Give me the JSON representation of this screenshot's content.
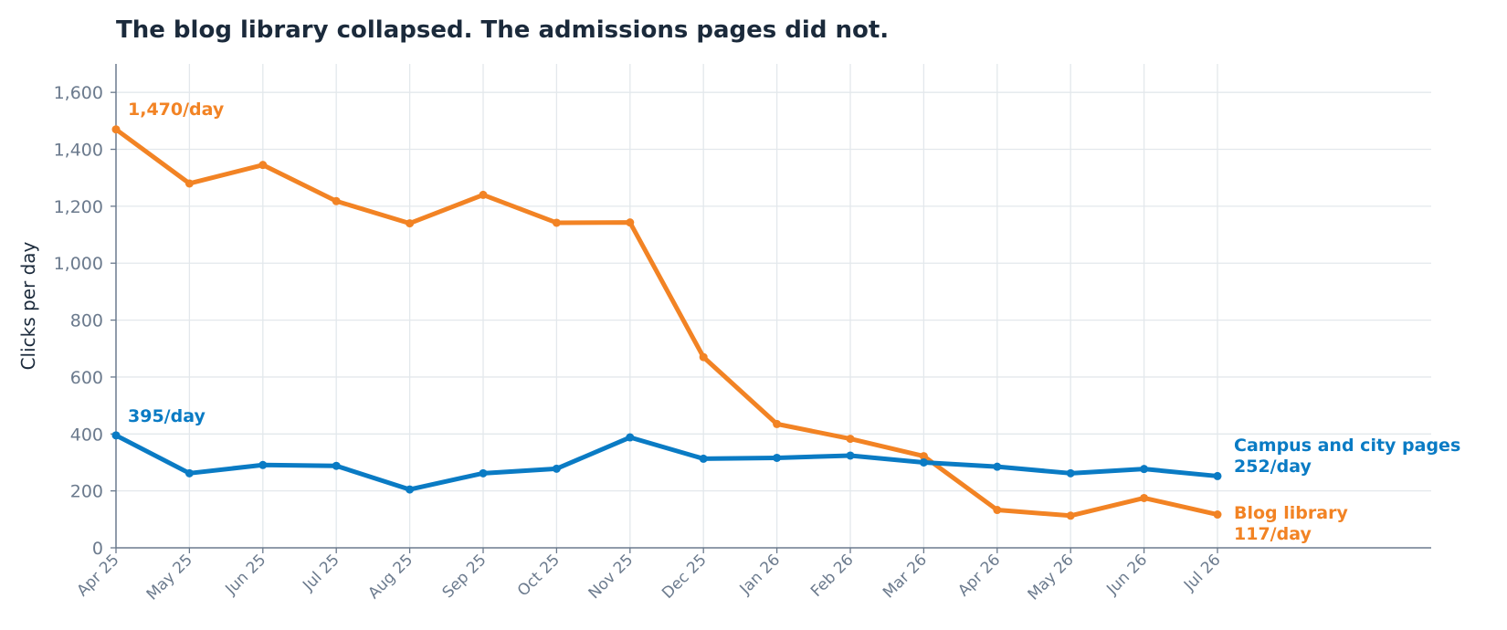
{
  "title": "The blog library collapsed. The admissions pages did not.",
  "colors": {
    "blog": "#f28324",
    "campus": "#0a7bc4",
    "axis": "#6b7a8d",
    "grid": "#e3e8ec",
    "title": "#1b2a3b"
  },
  "chart_data": {
    "type": "line",
    "title": "The blog library collapsed. The admissions pages did not.",
    "xlabel": "",
    "ylabel": "Clicks per day",
    "ylim": [
      0,
      1700
    ],
    "yticks": [
      0,
      200,
      400,
      600,
      800,
      1000,
      1200,
      1400,
      1600
    ],
    "ytick_labels": [
      "0",
      "200",
      "400",
      "600",
      "800",
      "1,000",
      "1,200",
      "1,400",
      "1,600"
    ],
    "grid": true,
    "categories": [
      "Apr 25",
      "May 25",
      "Jun 25",
      "Jul 25",
      "Aug 25",
      "Sep 25",
      "Oct 25",
      "Nov 25",
      "Dec 25",
      "Jan 26",
      "Feb 26",
      "Mar 26",
      "Apr 26",
      "May 26",
      "Jun 26",
      "Jul 26"
    ],
    "series": [
      {
        "name": "Blog library",
        "color": "#f28324",
        "values": [
          1470,
          1280,
          1345,
          1218,
          1140,
          1240,
          1142,
          1143,
          670,
          435,
          383,
          322,
          133,
          113,
          175,
          117
        ],
        "start_label": "1,470/day",
        "end_label": "117/day"
      },
      {
        "name": "Campus and city pages",
        "color": "#0a7bc4",
        "values": [
          395,
          262,
          291,
          288,
          205,
          262,
          278,
          388,
          313,
          316,
          324,
          300,
          285,
          262,
          277,
          252
        ],
        "start_label": "395/day",
        "end_label": "252/day"
      }
    ]
  }
}
